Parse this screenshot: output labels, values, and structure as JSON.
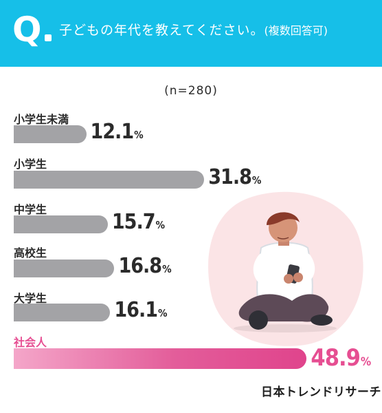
{
  "header": {
    "q_mark": "Q",
    "question": "子どもの年代を教えてください。",
    "note": "(複数回答可)"
  },
  "chart_data": {
    "type": "bar",
    "orientation": "horizontal",
    "sample_label": "(n=280)",
    "categories": [
      "小学生未満",
      "小学生",
      "中学生",
      "高校生",
      "大学生",
      "社会人"
    ],
    "values": [
      12.1,
      31.8,
      15.7,
      16.8,
      16.1,
      48.9
    ],
    "value_unit": "%",
    "highlight": "社会人",
    "colors": {
      "bar": "#a3a3a6",
      "highlight": "#e64e92",
      "header": "#16bfe8"
    }
  },
  "brand": "日本トレンドリサーチ"
}
